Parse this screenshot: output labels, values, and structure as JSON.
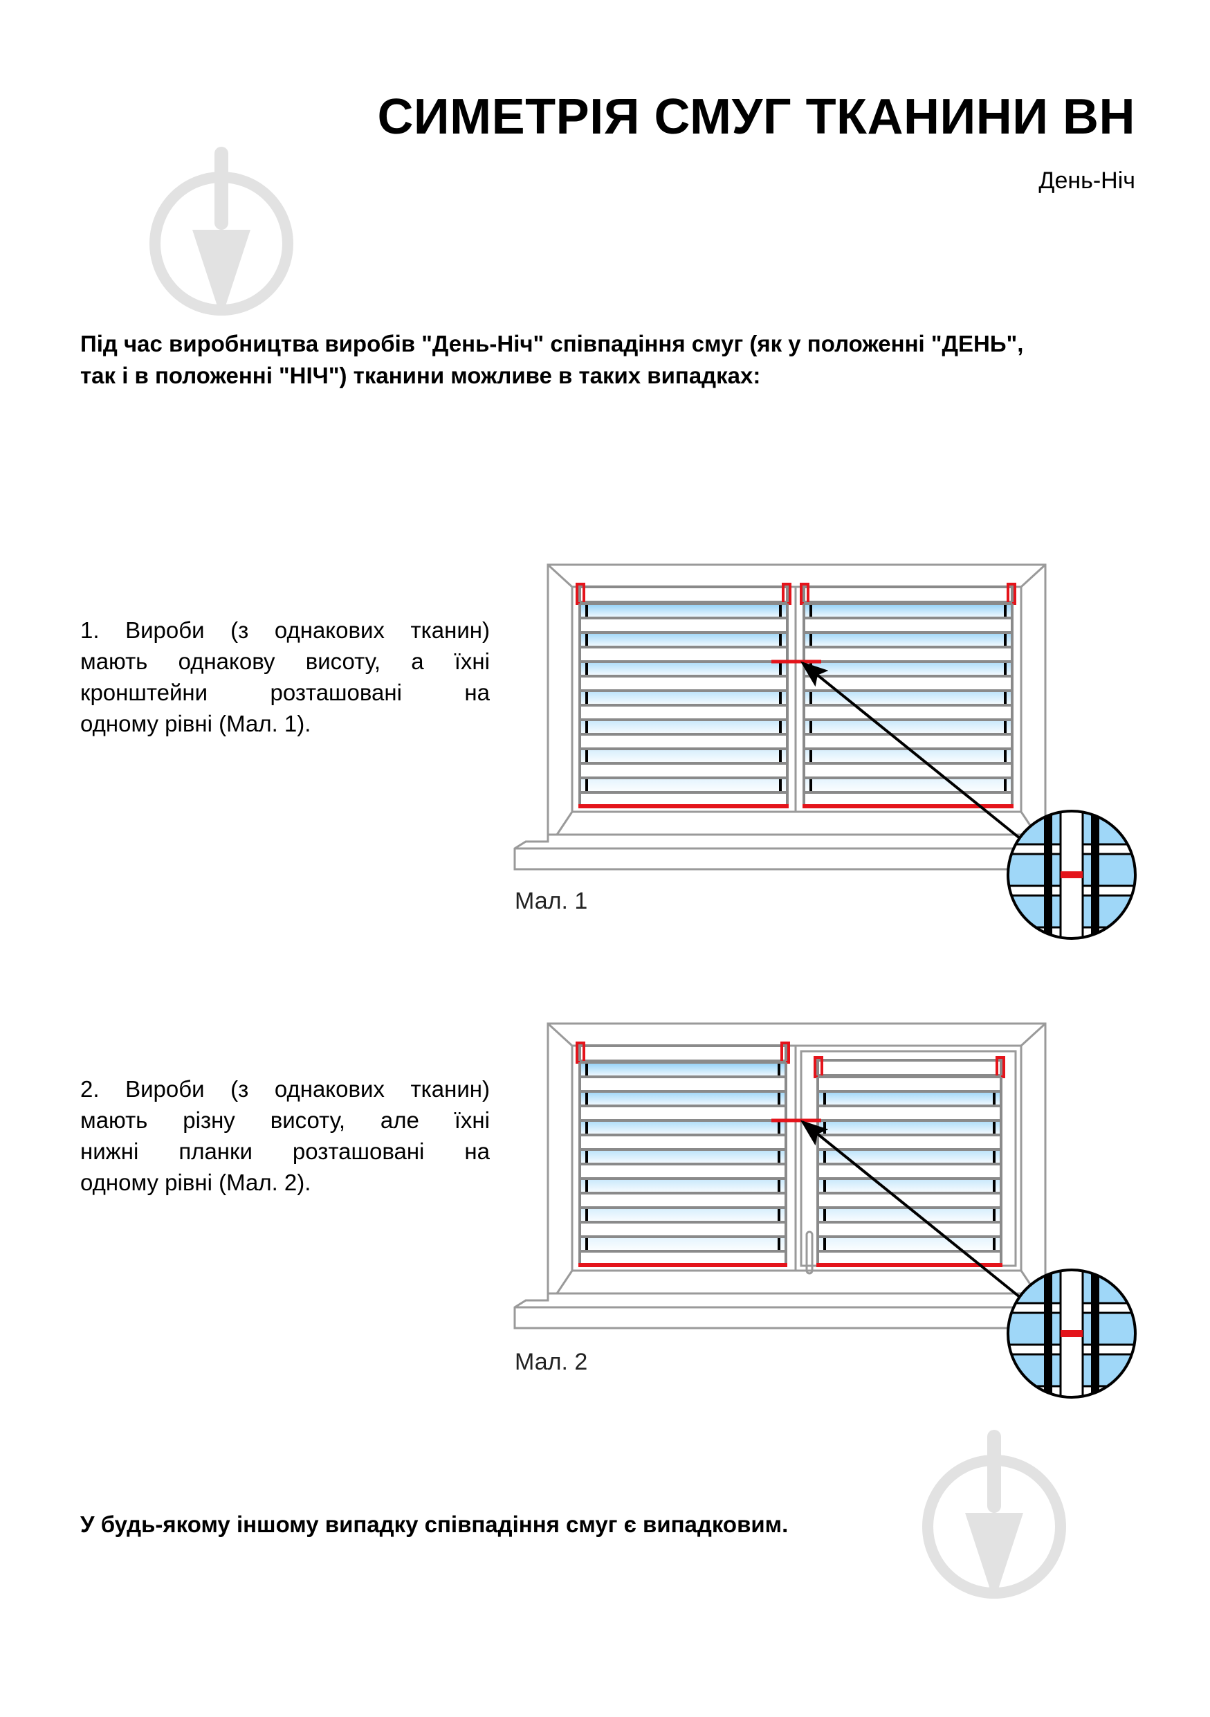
{
  "header": {
    "title": "СИМЕТРІЯ СМУГ ТКАНИНИ ВН",
    "subtitle": "День-Ніч"
  },
  "intro": {
    "lines": [
      "Під час виробництва виробів \"День-Ніч\" співпадіння смуг (як у положенні \"ДЕНЬ\",",
      "так і в положенні \"НІЧ\") тканини можливе в таких випадках:"
    ]
  },
  "cases": [
    {
      "lines": [
        "1. Вироби (з однакових тканин)",
        "мають однакову висоту, а їхні",
        "кронштейни розташовані на",
        "одному рівні (Мал. 1)."
      ],
      "caption": "Мал. 1"
    },
    {
      "lines": [
        "2. Вироби (з однакових тканин)",
        "мають різну висоту, але їхні",
        "нижні планки розташовані на",
        "одному рівні (Мал. 2)."
      ],
      "caption": "Мал. 2"
    }
  ],
  "outro": "У будь-якому іншому випадку співпадіння смуг є випадковим.",
  "colors": {
    "accent_red": "#e4141b",
    "frame_gray": "#9a9a9a",
    "slat_gray": "#8a8a8a",
    "sheer_blue": "#8fd0f7",
    "watermark": "#e2e2e2"
  },
  "icons": [
    "trowel-watermark-icon",
    "magnifier-detail-icon",
    "arrow-icon"
  ]
}
